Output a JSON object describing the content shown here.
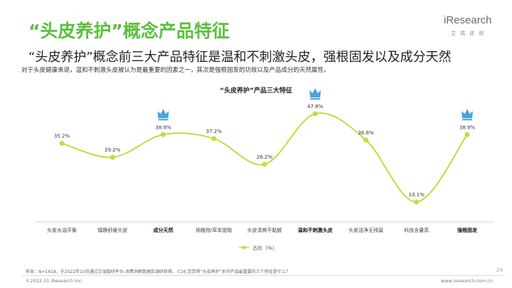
{
  "header": {
    "title": "“头皮养护”概念产品特征",
    "subtitle": "“头皮养护”概念前三大产品特征是温和不刺激头皮，强根固发以及成分天然",
    "description": "对于头皮健康来说，温和不刺激头皮被认为是最重要的因素之一，其次是强根固发的功效以及产品成分的天然属性。"
  },
  "logo": {
    "brand": "iResearch",
    "chinese": "艾瑞咨询"
  },
  "chart_data": {
    "type": "line",
    "title": "“头皮养护”产品三大特征",
    "categories": [
      "头皮水油平衡",
      "镇静舒缓头皮",
      "成分天然",
      "纯植物/草本提取",
      "头皮清爽不黏腻",
      "温和不刺激头皮",
      "头皮洁净无残留",
      "科技含量高",
      "强根固发"
    ],
    "emphasized_categories": [
      "成分天然",
      "温和不刺激头皮",
      "强根固发"
    ],
    "series": [
      {
        "name": "占比（%）",
        "values": [
          35.2,
          29.2,
          38.9,
          37.2,
          26.2,
          47.8,
          36.6,
          10.1,
          38.9
        ]
      }
    ],
    "value_labels": [
      "35.2%",
      "29.2%",
      "38.9%",
      "37.2%",
      "26.2%",
      "47.8%",
      "36.6%",
      "10.1%",
      "38.9%"
    ],
    "crowned_points": [
      2,
      5,
      8
    ],
    "legend_position": "bottom",
    "grid": false,
    "ylim": [
      0,
      55
    ],
    "colors": {
      "line": "#c4db3f",
      "marker": "#c4db3f",
      "crown": "#4aa3df"
    }
  },
  "footnote": "样本：N=1618，于2022年10月通过艾瑞智研平台-消费洞察数据库调研获得。 C16.您觉得“头皮养护”系列产品最重要的三个特征是什么？",
  "footer": {
    "copyright": "©2022.11 iResearch Inc.",
    "website": "www.iresearch.com.cn",
    "page": "24"
  }
}
